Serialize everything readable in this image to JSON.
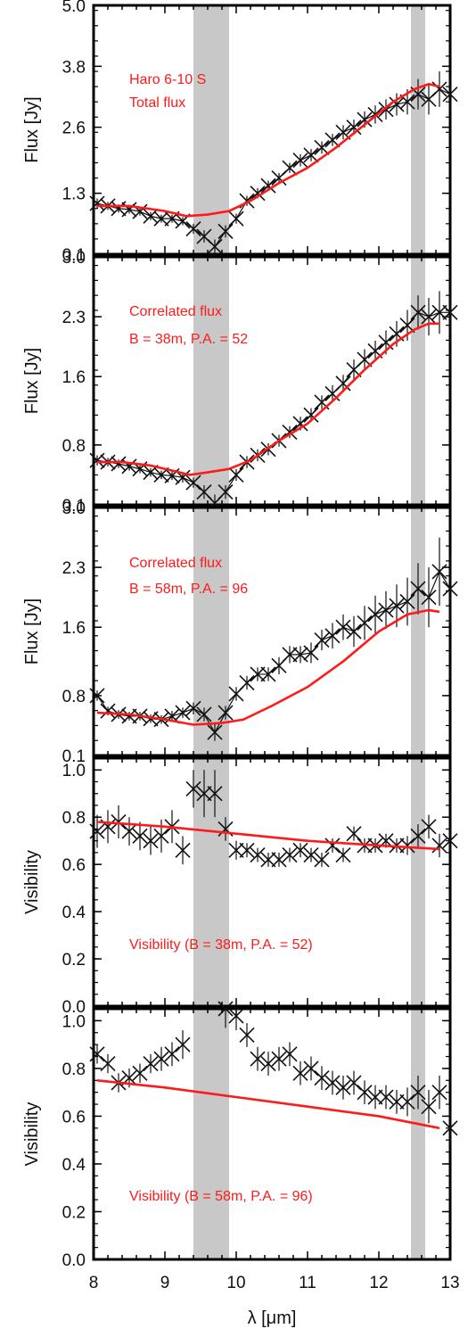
{
  "colors": {
    "model": "#ff1a1a",
    "data": "#111111",
    "band": "#c8c8c8",
    "frame": "#000000"
  },
  "chart_data": [
    {
      "type": "line",
      "panel": "top",
      "xlim": [
        8,
        13
      ],
      "ylim": [
        0.1,
        5.0
      ],
      "ylabel": "Flux [Jy]",
      "yticks": [
        0.1,
        1.3,
        2.6,
        3.8,
        5.0
      ],
      "yticklabels": [
        "0.1",
        "1.3",
        "2.6",
        "3.8",
        "5.0"
      ],
      "annotations": [
        "Haro 6-10 S",
        "Total flux"
      ],
      "shaded_bands": [
        [
          9.4,
          9.9
        ],
        [
          12.45,
          12.65
        ]
      ],
      "series": [
        {
          "kind": "measured",
          "x": [
            8.05,
            8.2,
            8.35,
            8.5,
            8.65,
            8.8,
            8.95,
            9.1,
            9.25,
            9.4,
            9.55,
            9.7,
            9.85,
            10.0,
            10.15,
            10.3,
            10.45,
            10.6,
            10.75,
            10.9,
            11.05,
            11.2,
            11.35,
            11.5,
            11.65,
            11.8,
            11.95,
            12.1,
            12.25,
            12.4,
            12.55,
            12.7,
            12.85,
            13.0
          ],
          "y": [
            1.1,
            1.05,
            1.0,
            0.98,
            0.94,
            0.85,
            0.8,
            0.8,
            0.75,
            0.6,
            0.45,
            0.25,
            0.55,
            0.8,
            1.15,
            1.3,
            1.45,
            1.6,
            1.8,
            1.95,
            2.05,
            2.2,
            2.35,
            2.5,
            2.6,
            2.75,
            2.85,
            2.95,
            3.05,
            3.1,
            3.25,
            3.15,
            3.35,
            3.25
          ],
          "yerr": [
            0.1,
            0.08,
            0.08,
            0.08,
            0.08,
            0.08,
            0.08,
            0.08,
            0.08,
            0.1,
            0.12,
            0.14,
            0.12,
            0.1,
            0.1,
            0.1,
            0.1,
            0.1,
            0.1,
            0.12,
            0.12,
            0.12,
            0.12,
            0.14,
            0.15,
            0.16,
            0.18,
            0.2,
            0.22,
            0.25,
            0.3,
            0.3,
            0.35,
            0.35
          ]
        },
        {
          "kind": "model",
          "x": [
            8.05,
            8.5,
            9.0,
            9.3,
            9.6,
            9.9,
            10.2,
            10.6,
            11.0,
            11.4,
            11.8,
            12.2,
            12.5,
            12.7,
            12.85
          ],
          "y": [
            1.05,
            1.05,
            0.95,
            0.85,
            0.88,
            0.95,
            1.15,
            1.5,
            1.8,
            2.2,
            2.65,
            3.1,
            3.35,
            3.45,
            3.4
          ]
        }
      ]
    },
    {
      "type": "line",
      "panel": "second",
      "xlim": [
        8,
        13
      ],
      "ylim": [
        0.1,
        3.0
      ],
      "ylabel": "Flux [Jy]",
      "yticks": [
        0.1,
        0.8,
        1.6,
        2.3,
        3.0
      ],
      "yticklabels": [
        "0.1",
        "0.8",
        "1.6",
        "2.3",
        "3.0"
      ],
      "annotations": [
        "Correlated flux",
        "B = 38m, P.A. = 52"
      ],
      "shaded_bands": [
        [
          9.4,
          9.9
        ],
        [
          12.45,
          12.65
        ]
      ],
      "series": [
        {
          "kind": "measured",
          "x": [
            8.05,
            8.2,
            8.35,
            8.5,
            8.65,
            8.8,
            8.95,
            9.1,
            9.25,
            9.4,
            9.55,
            9.7,
            9.85,
            10.0,
            10.15,
            10.3,
            10.45,
            10.6,
            10.75,
            10.9,
            11.05,
            11.2,
            11.35,
            11.5,
            11.65,
            11.8,
            11.95,
            12.1,
            12.25,
            12.4,
            12.55,
            12.7,
            12.85,
            13.0
          ],
          "y": [
            0.62,
            0.6,
            0.58,
            0.55,
            0.52,
            0.48,
            0.45,
            0.44,
            0.42,
            0.36,
            0.25,
            0.12,
            0.25,
            0.45,
            0.6,
            0.68,
            0.75,
            0.85,
            0.95,
            1.05,
            1.15,
            1.3,
            1.4,
            1.52,
            1.68,
            1.8,
            1.9,
            2.0,
            2.1,
            2.2,
            2.35,
            2.3,
            2.35,
            2.35
          ],
          "yerr": [
            0.06,
            0.05,
            0.05,
            0.05,
            0.05,
            0.05,
            0.05,
            0.05,
            0.06,
            0.06,
            0.08,
            0.1,
            0.08,
            0.07,
            0.07,
            0.07,
            0.07,
            0.07,
            0.07,
            0.08,
            0.08,
            0.08,
            0.1,
            0.1,
            0.12,
            0.12,
            0.12,
            0.14,
            0.15,
            0.18,
            0.2,
            0.22,
            0.25,
            0.25
          ]
        },
        {
          "kind": "model",
          "x": [
            8.05,
            8.4,
            8.8,
            9.1,
            9.35,
            9.6,
            9.9,
            10.2,
            10.6,
            11.0,
            11.4,
            11.8,
            12.2,
            12.5,
            12.7,
            12.85
          ],
          "y": [
            0.6,
            0.6,
            0.56,
            0.5,
            0.45,
            0.48,
            0.52,
            0.62,
            0.85,
            1.05,
            1.35,
            1.68,
            1.98,
            2.15,
            2.22,
            2.22
          ]
        }
      ]
    },
    {
      "type": "line",
      "panel": "third",
      "xlim": [
        8,
        13
      ],
      "ylim": [
        0.1,
        3.0
      ],
      "ylabel": "Flux [Jy]",
      "yticks": [
        0.1,
        0.8,
        1.6,
        2.3,
        3.0
      ],
      "yticklabels": [
        "0.1",
        "0.8",
        "1.6",
        "2.3",
        "3.0"
      ],
      "annotations": [
        "Correlated flux",
        "B = 58m, P.A. = 96"
      ],
      "shaded_bands": [
        [
          9.4,
          9.9
        ],
        [
          12.45,
          12.65
        ]
      ],
      "series": [
        {
          "kind": "measured",
          "x": [
            8.05,
            8.2,
            8.35,
            8.5,
            8.65,
            8.8,
            8.95,
            9.1,
            9.25,
            9.4,
            9.55,
            9.7,
            9.85,
            10.0,
            10.15,
            10.3,
            10.45,
            10.6,
            10.75,
            10.9,
            11.05,
            11.2,
            11.35,
            11.5,
            11.65,
            11.8,
            11.95,
            12.1,
            12.25,
            12.4,
            12.55,
            12.7,
            12.85,
            13.0
          ],
          "y": [
            0.8,
            0.62,
            0.58,
            0.56,
            0.56,
            0.53,
            0.52,
            0.56,
            0.6,
            0.65,
            0.58,
            0.37,
            0.6,
            0.82,
            0.95,
            1.05,
            1.05,
            1.15,
            1.28,
            1.28,
            1.3,
            1.45,
            1.5,
            1.6,
            1.55,
            1.65,
            1.75,
            1.8,
            1.85,
            1.9,
            2.05,
            1.95,
            2.25,
            2.05
          ],
          "yerr": [
            0.06,
            0.05,
            0.05,
            0.05,
            0.05,
            0.05,
            0.05,
            0.06,
            0.06,
            0.07,
            0.08,
            0.1,
            0.08,
            0.08,
            0.08,
            0.08,
            0.08,
            0.1,
            0.1,
            0.1,
            0.12,
            0.12,
            0.15,
            0.15,
            0.18,
            0.2,
            0.22,
            0.22,
            0.25,
            0.28,
            0.3,
            0.35,
            0.4,
            0.4
          ]
        },
        {
          "kind": "model",
          "x": [
            8.05,
            8.5,
            9.0,
            9.4,
            9.8,
            10.1,
            10.5,
            11.0,
            11.5,
            12.0,
            12.4,
            12.7,
            12.85
          ],
          "y": [
            0.6,
            0.58,
            0.52,
            0.46,
            0.48,
            0.52,
            0.68,
            0.9,
            1.2,
            1.55,
            1.75,
            1.8,
            1.78
          ]
        }
      ]
    },
    {
      "type": "scatter",
      "panel": "fourth",
      "xlim": [
        8,
        13
      ],
      "ylim": [
        0.0,
        1.05
      ],
      "ylabel": "Visibility",
      "yticks": [
        0.0,
        0.2,
        0.4,
        0.6,
        0.8,
        1.0
      ],
      "yticklabels": [
        "0.0",
        "0.2",
        "0.4",
        "0.6",
        "0.8",
        "1.0"
      ],
      "annotations": [
        "Visibility (B = 38m, P.A. = 52)"
      ],
      "shaded_bands": [
        [
          9.4,
          9.9
        ],
        [
          12.45,
          12.65
        ]
      ],
      "series": [
        {
          "kind": "measured",
          "x": [
            8.05,
            8.2,
            8.35,
            8.5,
            8.65,
            8.8,
            8.95,
            9.1,
            9.25,
            9.4,
            9.55,
            9.7,
            9.85,
            10.0,
            10.15,
            10.3,
            10.45,
            10.6,
            10.75,
            10.9,
            11.05,
            11.2,
            11.35,
            11.5,
            11.65,
            11.8,
            11.95,
            12.1,
            12.25,
            12.4,
            12.55,
            12.7,
            12.85,
            13.0
          ],
          "y": [
            0.74,
            0.76,
            0.78,
            0.74,
            0.72,
            0.7,
            0.72,
            0.76,
            0.66,
            0.92,
            0.9,
            0.9,
            0.75,
            0.66,
            0.66,
            0.64,
            0.62,
            0.62,
            0.64,
            0.66,
            0.64,
            0.62,
            0.68,
            0.64,
            0.73,
            0.68,
            0.68,
            0.7,
            0.68,
            0.68,
            0.72,
            0.76,
            0.68,
            0.7
          ],
          "yerr": [
            0.07,
            0.07,
            0.07,
            0.06,
            0.06,
            0.06,
            0.07,
            0.07,
            0.06,
            0.08,
            0.1,
            0.1,
            0.05,
            0.04,
            0.03,
            0.03,
            0.03,
            0.03,
            0.03,
            0.03,
            0.03,
            0.03,
            0.03,
            0.03,
            0.03,
            0.03,
            0.03,
            0.03,
            0.03,
            0.04,
            0.05,
            0.05,
            0.05,
            0.05
          ]
        },
        {
          "kind": "model",
          "x": [
            8.05,
            9.0,
            10.0,
            11.0,
            12.0,
            12.85
          ],
          "y": [
            0.78,
            0.76,
            0.73,
            0.7,
            0.68,
            0.665
          ]
        }
      ]
    },
    {
      "type": "scatter",
      "panel": "bottom",
      "xlim": [
        8,
        13
      ],
      "ylim": [
        0.0,
        1.05
      ],
      "xlabel": "λ [μm]",
      "ylabel": "Visibility",
      "xticks": [
        8,
        9,
        10,
        11,
        12,
        13
      ],
      "xticklabels": [
        "8",
        "9",
        "10",
        "11",
        "12",
        "13"
      ],
      "yticks": [
        0.0,
        0.2,
        0.4,
        0.6,
        0.8,
        1.0
      ],
      "yticklabels": [
        "0.0",
        "0.2",
        "0.4",
        "0.6",
        "0.8",
        "1.0"
      ],
      "annotations": [
        "Visibility (B = 58m, P.A. = 96)"
      ],
      "shaded_bands": [
        [
          9.4,
          9.9
        ],
        [
          12.45,
          12.65
        ]
      ],
      "series": [
        {
          "kind": "measured",
          "x": [
            8.05,
            8.2,
            8.35,
            8.5,
            8.65,
            8.8,
            8.95,
            9.1,
            9.25,
            9.4,
            9.55,
            9.7,
            9.85,
            10.0,
            10.15,
            10.3,
            10.45,
            10.6,
            10.75,
            10.9,
            11.05,
            11.2,
            11.35,
            11.5,
            11.65,
            11.8,
            11.95,
            12.1,
            12.25,
            12.4,
            12.55,
            12.7,
            12.85,
            13.0
          ],
          "y": [
            0.86,
            0.82,
            0.74,
            0.76,
            0.78,
            0.82,
            0.84,
            0.86,
            0.9,
            1.08,
            1.12,
            1.12,
            1.05,
            1.02,
            0.94,
            0.84,
            0.82,
            0.84,
            0.86,
            0.78,
            0.8,
            0.76,
            0.74,
            0.72,
            0.74,
            0.7,
            0.68,
            0.68,
            0.66,
            0.66,
            0.7,
            0.64,
            0.7,
            0.55
          ],
          "yerr": [
            0.04,
            0.04,
            0.04,
            0.04,
            0.04,
            0.04,
            0.05,
            0.05,
            0.06,
            0.08,
            0.1,
            0.1,
            0.08,
            0.06,
            0.05,
            0.05,
            0.05,
            0.05,
            0.05,
            0.05,
            0.05,
            0.05,
            0.05,
            0.05,
            0.05,
            0.05,
            0.05,
            0.05,
            0.05,
            0.06,
            0.07,
            0.07,
            0.07,
            0.07
          ]
        },
        {
          "kind": "model",
          "x": [
            8.05,
            9.0,
            10.0,
            11.0,
            12.0,
            12.85
          ],
          "y": [
            0.75,
            0.72,
            0.68,
            0.64,
            0.6,
            0.55
          ]
        }
      ]
    }
  ]
}
